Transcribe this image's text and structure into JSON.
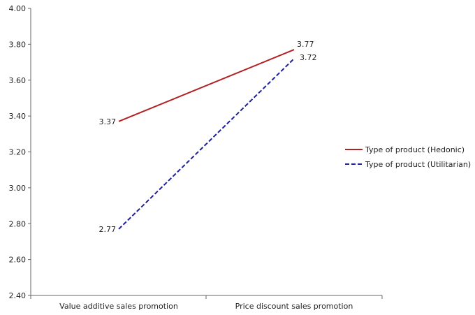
{
  "chart_data": {
    "type": "line",
    "title": "",
    "xlabel": "",
    "ylabel": "",
    "categories": [
      "Value additive sales promotion",
      "Price discount sales promotion"
    ],
    "ylim": [
      2.4,
      4.0
    ],
    "yticks": [
      "2.40",
      "2.60",
      "2.80",
      "3.00",
      "3.20",
      "3.40",
      "3.60",
      "3.80",
      "4.00"
    ],
    "grid": false,
    "legend_position": "right",
    "series": [
      {
        "name": "Type of product (Hedonic)",
        "values": [
          3.37,
          3.77
        ],
        "labels": [
          "3.37",
          "3.77"
        ],
        "color": "#b22222",
        "line_style": "solid"
      },
      {
        "name": "Type of product (Utilitarian)",
        "values": [
          2.77,
          3.72
        ],
        "labels": [
          "2.77",
          "3.72"
        ],
        "color": "#1f1f99",
        "line_style": "dashed"
      }
    ]
  }
}
